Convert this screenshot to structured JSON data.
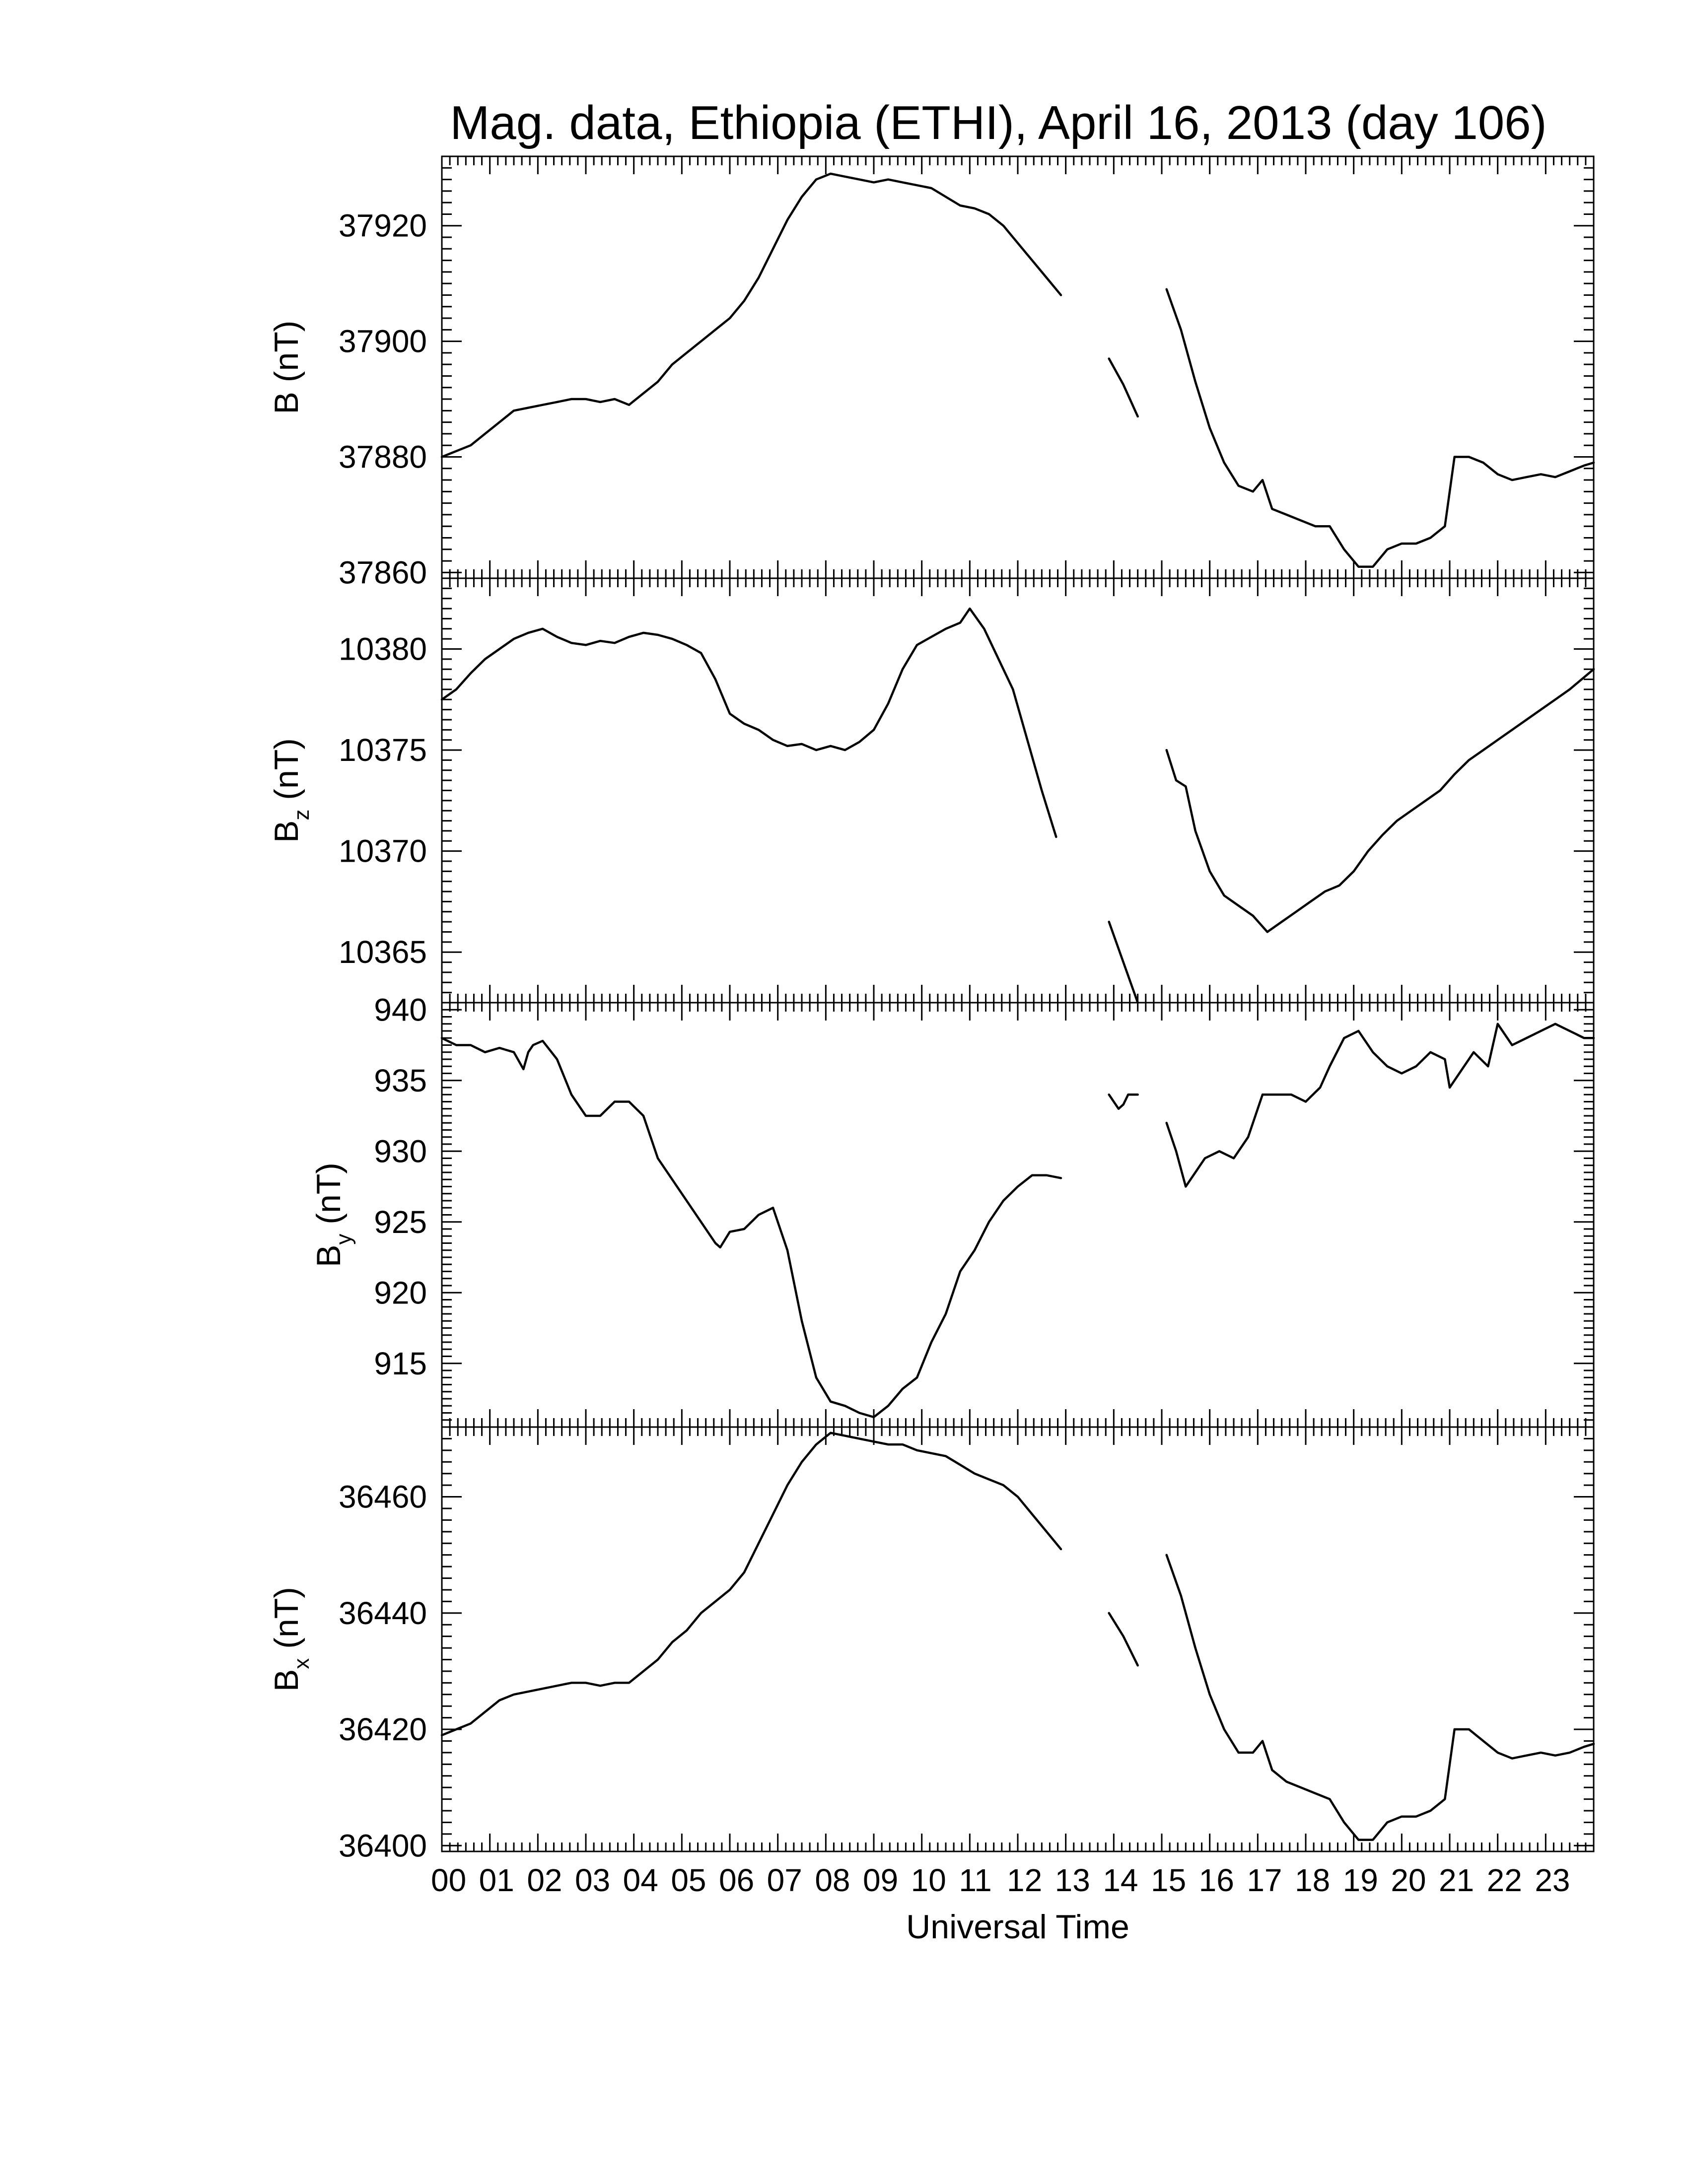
{
  "chart_data": {
    "type": "line",
    "title": "Mag. data, Ethiopia (ETHI), April 16, 2013 (day 106)",
    "xlabel": "Universal Time",
    "xlim": [
      0,
      24
    ],
    "x_tick_labels": [
      "00",
      "01",
      "02",
      "03",
      "04",
      "05",
      "06",
      "07",
      "08",
      "09",
      "10",
      "11",
      "12",
      "13",
      "14",
      "15",
      "16",
      "17",
      "18",
      "19",
      "20",
      "21",
      "22",
      "23"
    ],
    "panels": [
      {
        "key": "B",
        "ylabel_main": "B",
        "ylabel_sub": "",
        "ylabel_unit": "(nT)",
        "ylim": [
          37859,
          37932
        ],
        "yticks": [
          37860,
          37880,
          37900,
          37920
        ],
        "segments": [
          {
            "x": [
              0.0,
              0.3,
              0.6,
              0.9,
              1.2,
              1.5,
              1.8,
              2.1,
              2.4,
              2.7,
              3.0,
              3.3,
              3.6,
              3.9,
              4.2,
              4.5,
              4.8,
              5.1,
              5.4,
              5.7,
              6.0,
              6.3,
              6.6,
              6.9,
              7.2,
              7.5,
              7.8,
              8.1,
              8.4,
              8.7,
              9.0,
              9.3,
              9.6,
              9.9,
              10.2,
              10.5,
              10.8,
              11.1,
              11.4,
              11.7,
              12.0,
              12.3,
              12.6,
              12.9
            ],
            "y": [
              37880,
              37881,
              37882,
              37884,
              37886,
              37888,
              37888.5,
              37889,
              37889.5,
              37890,
              37890,
              37889.5,
              37890,
              37889,
              37891,
              37893,
              37896,
              37898,
              37900,
              37902,
              37904,
              37907,
              37911,
              37916,
              37921,
              37925,
              37928,
              37929,
              37928.5,
              37928,
              37927.5,
              37928,
              37927.5,
              37927,
              37926.5,
              37925,
              37923.5,
              37923,
              37922,
              37920,
              37917,
              37914,
              37911,
              37908
            ]
          },
          {
            "x": [
              13.9,
              14.2,
              14.5
            ],
            "y": [
              37897,
              37892.5,
              37887
            ]
          },
          {
            "x": [
              15.1,
              15.4,
              15.7,
              16.0,
              16.3,
              16.6,
              16.9,
              17.1,
              17.3,
              17.6,
              17.9,
              18.2,
              18.5,
              18.8,
              19.1,
              19.4,
              19.7,
              20.0,
              20.3,
              20.6,
              20.9,
              21.1,
              21.4,
              21.7,
              22.0,
              22.3,
              22.6,
              22.9,
              23.2,
              23.5,
              23.8,
              24.0
            ],
            "y": [
              37909,
              37902,
              37893,
              37885,
              37879,
              37875,
              37874,
              37876,
              37871,
              37870,
              37869,
              37868,
              37868,
              37864,
              37861,
              37861,
              37864,
              37865,
              37865,
              37866,
              37868,
              37880,
              37880,
              37879,
              37877,
              37876,
              37876.5,
              37877,
              37876.5,
              37877.5,
              37878.5,
              37879
            ]
          }
        ]
      },
      {
        "key": "Bz",
        "ylabel_main": "B",
        "ylabel_sub": "z",
        "ylabel_unit": "(nT)",
        "ylim": [
          10362.5,
          10383.5
        ],
        "yticks": [
          10365,
          10370,
          10375,
          10380
        ],
        "segments": [
          {
            "x": [
              0.0,
              0.3,
              0.6,
              0.9,
              1.2,
              1.5,
              1.8,
              2.1,
              2.4,
              2.7,
              3.0,
              3.3,
              3.6,
              3.9,
              4.2,
              4.5,
              4.8,
              5.1,
              5.4,
              5.7,
              6.0,
              6.3,
              6.6,
              6.9,
              7.2,
              7.5,
              7.8,
              8.1,
              8.4,
              8.7,
              9.0,
              9.3,
              9.6,
              9.9,
              10.2,
              10.5,
              10.8,
              11.0,
              11.3,
              11.6,
              11.9,
              12.2,
              12.5,
              12.8
            ],
            "y": [
              10377.5,
              10378,
              10378.8,
              10379.5,
              10380,
              10380.5,
              10380.8,
              10381,
              10380.6,
              10380.3,
              10380.2,
              10380.4,
              10380.3,
              10380.6,
              10380.8,
              10380.7,
              10380.5,
              10380.2,
              10379.8,
              10378.5,
              10376.8,
              10376.3,
              10376,
              10375.5,
              10375.2,
              10375.3,
              10375,
              10375.2,
              10375,
              10375.4,
              10376,
              10377.3,
              10379,
              10380.2,
              10380.6,
              10381,
              10381.3,
              10382,
              10381,
              10379.5,
              10378,
              10375.5,
              10373,
              10370.7
            ]
          },
          {
            "x": [
              13.9,
              14.2,
              14.5
            ],
            "y": [
              10366.5,
              10364.5,
              10362.5
            ]
          },
          {
            "x": [
              15.1,
              15.3,
              15.5,
              15.7,
              16.0,
              16.3,
              16.6,
              16.9,
              17.2,
              17.5,
              17.8,
              18.1,
              18.4,
              18.7,
              19.0,
              19.3,
              19.6,
              19.9,
              20.2,
              20.5,
              20.8,
              21.1,
              21.4,
              21.7,
              22.0,
              22.3,
              22.6,
              22.9,
              23.2,
              23.5,
              23.8,
              24.0
            ],
            "y": [
              10375,
              10373.5,
              10373.2,
              10371,
              10369,
              10367.8,
              10367.3,
              10366.8,
              10366,
              10366.5,
              10367,
              10367.5,
              10368,
              10368.3,
              10369,
              10370,
              10370.8,
              10371.5,
              10372,
              10372.5,
              10373,
              10373.8,
              10374.5,
              10375,
              10375.5,
              10376,
              10376.5,
              10377,
              10377.5,
              10378,
              10378.6,
              10379
            ]
          }
        ]
      },
      {
        "key": "By",
        "ylabel_main": "B",
        "ylabel_sub": "y",
        "ylabel_unit": "(nT)",
        "ylim": [
          910.5,
          940.5
        ],
        "yticks": [
          915,
          920,
          925,
          930,
          935,
          940
        ],
        "ytick_labels": [
          "915",
          "920",
          "925",
          "930",
          "935",
          "940"
        ],
        "segments": [
          {
            "x": [
              0.0,
              0.3,
              0.6,
              0.9,
              1.2,
              1.5,
              1.7,
              1.8,
              1.9,
              2.1,
              2.4,
              2.7,
              3.0,
              3.3,
              3.6,
              3.9,
              4.2,
              4.5,
              4.8,
              5.1,
              5.4,
              5.7,
              5.8,
              6.0,
              6.3,
              6.6,
              6.9,
              7.2,
              7.5,
              7.8,
              8.1,
              8.4,
              8.7,
              9.0,
              9.3,
              9.6,
              9.9,
              10.2,
              10.5,
              10.8,
              11.1,
              11.4,
              11.7,
              12.0,
              12.3,
              12.6,
              12.9
            ],
            "y": [
              938,
              937.5,
              937.5,
              937,
              937.3,
              937,
              935.8,
              937,
              937.5,
              937.8,
              936.5,
              934,
              932.5,
              932.5,
              933.5,
              933.5,
              932.5,
              929.5,
              928,
              926.5,
              925,
              923.5,
              923.2,
              924.3,
              924.5,
              925.5,
              926,
              923,
              918,
              914,
              912.3,
              912,
              911.5,
              911.2,
              912,
              913.2,
              914,
              916.5,
              918.5,
              921.5,
              923,
              925,
              926.5,
              927.5,
              928.3,
              928.3,
              928.1
            ]
          },
          {
            "x": [
              13.9,
              14.1,
              14.2,
              14.3,
              14.5
            ],
            "y": [
              934,
              933,
              933.3,
              934,
              934
            ]
          },
          {
            "x": [
              15.1,
              15.3,
              15.5,
              15.7,
              15.9,
              16.2,
              16.5,
              16.8,
              17.1,
              17.4,
              17.7,
              18.0,
              18.3,
              18.5,
              18.8,
              19.1,
              19.4,
              19.7,
              20.0,
              20.3,
              20.6,
              20.9,
              21.0,
              21.2,
              21.5,
              21.8,
              22.0,
              22.3,
              22.6,
              22.9,
              23.2,
              23.5,
              23.8,
              24.0
            ],
            "y": [
              932,
              930,
              927.5,
              928.5,
              929.5,
              930,
              929.5,
              931,
              934,
              934,
              934,
              933.5,
              934.5,
              936,
              938,
              938.5,
              937,
              936,
              935.5,
              936,
              937,
              936.5,
              934.5,
              935.5,
              937,
              936,
              939,
              937.5,
              938,
              938.5,
              939,
              938.5,
              938,
              938
            ]
          }
        ]
      },
      {
        "key": "Bx",
        "ylabel_main": "B",
        "ylabel_sub": "x",
        "ylabel_unit": "(nT)",
        "ylim": [
          36399,
          36472
        ],
        "yticks": [
          36400,
          36420,
          36440,
          36460
        ],
        "segments": [
          {
            "x": [
              0.0,
              0.3,
              0.6,
              0.9,
              1.2,
              1.5,
              1.8,
              2.1,
              2.4,
              2.7,
              3.0,
              3.3,
              3.6,
              3.9,
              4.2,
              4.5,
              4.8,
              5.1,
              5.4,
              5.7,
              6.0,
              6.3,
              6.6,
              6.9,
              7.2,
              7.5,
              7.8,
              8.1,
              8.4,
              8.7,
              9.0,
              9.3,
              9.6,
              9.9,
              10.2,
              10.5,
              10.8,
              11.1,
              11.4,
              11.7,
              12.0,
              12.3,
              12.6,
              12.9
            ],
            "y": [
              36419,
              36420,
              36421,
              36423,
              36425,
              36426,
              36426.5,
              36427,
              36427.5,
              36428,
              36428,
              36427.5,
              36428,
              36428,
              36430,
              36432,
              36435,
              36437,
              36440,
              36442,
              36444,
              36447,
              36452,
              36457,
              36462,
              36466,
              36469,
              36471,
              36470.5,
              36470,
              36469.5,
              36469,
              36469,
              36468,
              36467.5,
              36467,
              36465.5,
              36464,
              36463,
              36462,
              36460,
              36457,
              36454,
              36451
            ]
          },
          {
            "x": [
              13.9,
              14.2,
              14.5
            ],
            "y": [
              36440,
              36436,
              36431
            ]
          },
          {
            "x": [
              15.1,
              15.4,
              15.7,
              16.0,
              16.3,
              16.6,
              16.9,
              17.1,
              17.3,
              17.6,
              17.9,
              18.2,
              18.5,
              18.8,
              19.1,
              19.4,
              19.7,
              20.0,
              20.3,
              20.6,
              20.9,
              21.1,
              21.4,
              21.7,
              22.0,
              22.3,
              22.6,
              22.9,
              23.2,
              23.5,
              23.8,
              24.0
            ],
            "y": [
              36450,
              36443,
              36434,
              36426,
              36420,
              36416,
              36416,
              36418,
              36413,
              36411,
              36410,
              36409,
              36408,
              36404,
              36401,
              36401,
              36404,
              36405,
              36405,
              36406,
              36408,
              36420,
              36420,
              36418,
              36416,
              36415,
              36415.5,
              36416,
              36415.5,
              36416,
              36417,
              36417.5
            ]
          }
        ]
      }
    ]
  }
}
